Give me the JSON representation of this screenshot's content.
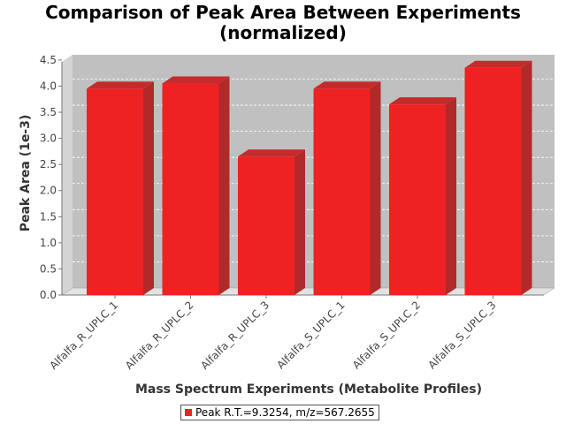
{
  "chart_data": {
    "type": "bar",
    "title_lines": [
      "Comparison of Peak Area Between Experiments",
      "(normalized)"
    ],
    "xlabel": "Mass Spectrum Experiments (Metabolite Profiles)",
    "ylabel": "Peak Area (1e-3)",
    "categories": [
      "Alfalfa_R_UPLC_1",
      "Alfalfa_R_UPLC_2",
      "Alfalfa_R_UPLC_3",
      "Alfalfa_S_UPLC_1",
      "Alfalfa_S_UPLC_2",
      "Alfalfa_S_UPLC_3"
    ],
    "series": [
      {
        "name": "Peak R.T.=9.3254, m/z=567.2655",
        "color": "#ee2222",
        "values": [
          3.95,
          4.05,
          2.65,
          3.95,
          3.65,
          4.35
        ]
      }
    ],
    "yticks": [
      "0.0",
      "0.5",
      "1.0",
      "1.5",
      "2.0",
      "2.5",
      "3.0",
      "3.5",
      "4.0",
      "4.5"
    ],
    "ylim": [
      0,
      4.6
    ],
    "grid": true,
    "three_d": true,
    "plot_background": "#c0c0c0",
    "legend_position": "bottom"
  }
}
